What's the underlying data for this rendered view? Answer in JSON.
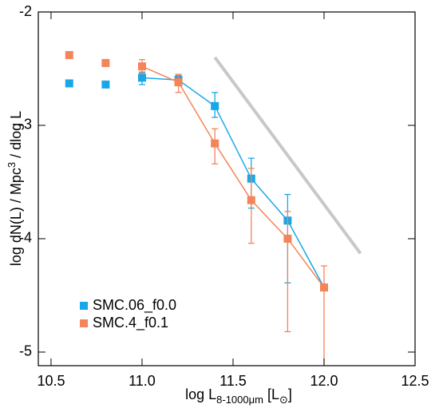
{
  "chart_data": {
    "type": "scatter",
    "xlabel_parts": [
      "log L",
      "8-1000μm",
      " [L",
      "⊙",
      "]"
    ],
    "ylabel_parts": [
      "log dN(L) / Mpc",
      "3",
      " / dlog L"
    ],
    "xlim": [
      10.43,
      12.5
    ],
    "ylim": [
      -5.12,
      -2
    ],
    "xticks": [
      10.5,
      {
        "value": 11,
        "label": "11.0"
      },
      11.5,
      {
        "value": 12,
        "label": "12.0"
      },
      12.5
    ],
    "yticks": [
      -2,
      -3,
      -4,
      -5
    ],
    "legend": "lower left",
    "x": [
      10.6,
      10.8,
      11.0,
      11.2,
      11.4,
      11.6,
      11.8,
      12.0
    ],
    "series": [
      {
        "name": "SMC.06_f0.0",
        "color": "#1aa7e8",
        "values": [
          -2.63,
          -2.64,
          -2.58,
          -2.6,
          -2.83,
          -3.47,
          -3.84,
          -4.43
        ],
        "err_minus": [
          null,
          null,
          0.06,
          0.04,
          0.1,
          0.26,
          0.55,
          null
        ],
        "err_plus": [
          null,
          null,
          0.05,
          0.04,
          0.12,
          0.18,
          0.23,
          null
        ],
        "connected": [
          false,
          false,
          true,
          true,
          true,
          true,
          true,
          true
        ]
      },
      {
        "name": "SMC.4_f0.1",
        "color": "#f4845a",
        "values": [
          -2.38,
          -2.45,
          -2.48,
          -2.62,
          -3.16,
          -3.66,
          -4.0,
          -4.43
        ],
        "err_minus": [
          null,
          null,
          0.06,
          0.09,
          0.18,
          0.38,
          0.82,
          0.8
        ],
        "err_plus": [
          null,
          null,
          0.06,
          0.07,
          0.13,
          0.28,
          0.24,
          0.19
        ],
        "connected": [
          false,
          false,
          true,
          true,
          true,
          true,
          true,
          true
        ]
      }
    ],
    "reference_line": {
      "x": [
        11.4,
        12.2
      ],
      "y": [
        -2.4,
        -4.13
      ],
      "color": "#c8c8c8"
    }
  }
}
